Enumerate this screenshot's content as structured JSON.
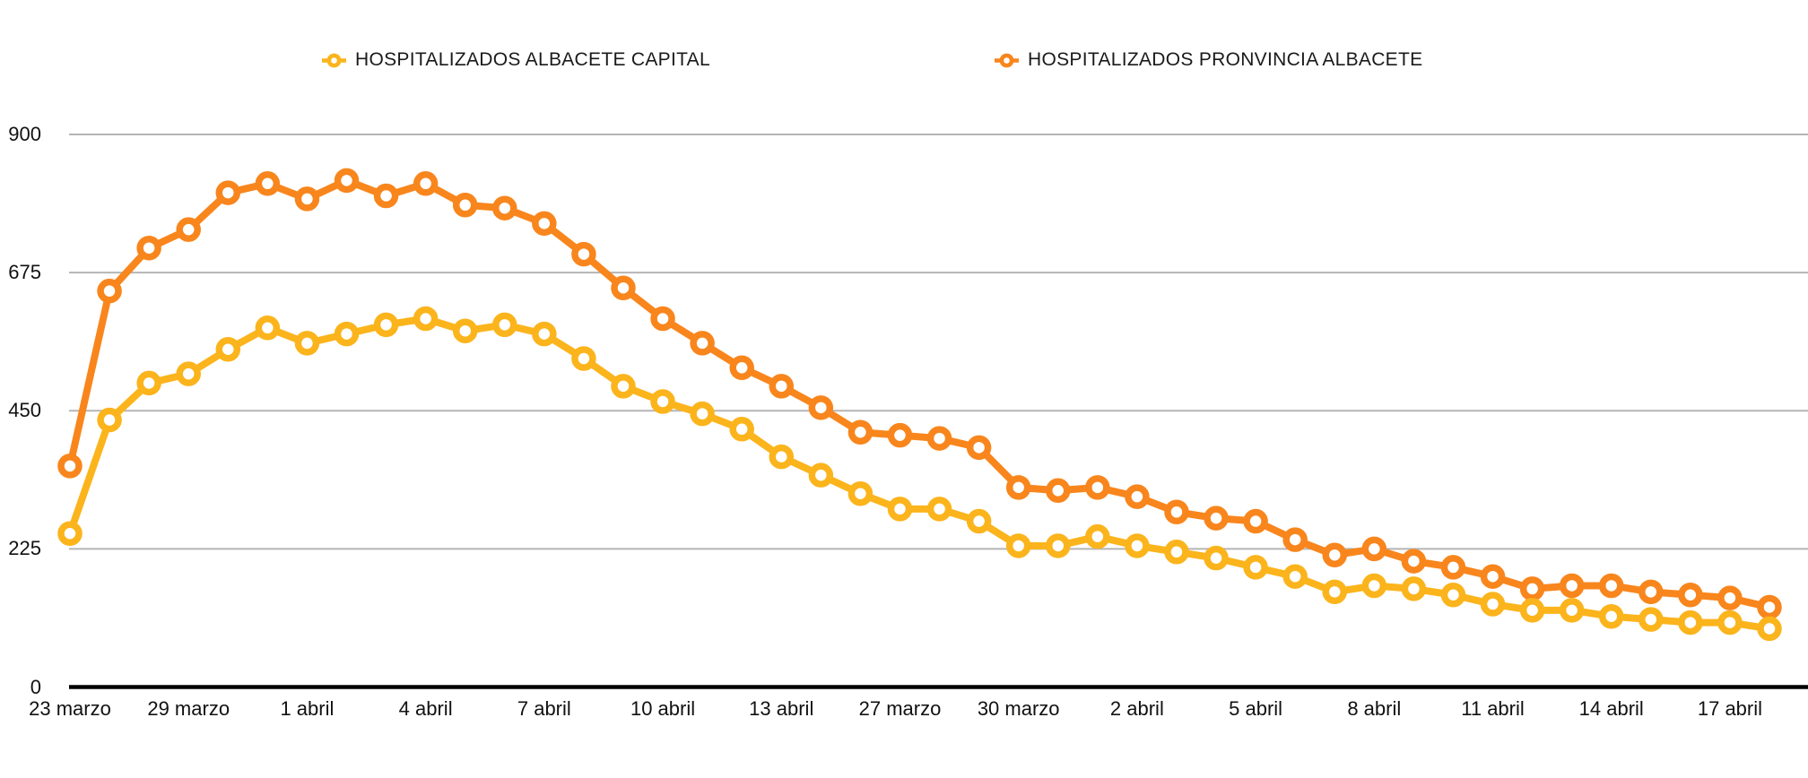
{
  "page": {
    "background": "#ffffff"
  },
  "legend": {
    "items": [
      {
        "label": "HOSPITALIZADOS ALBACETE CAPITAL",
        "color": "#FBB41C"
      },
      {
        "label": "HOSPITALIZADOS PRONVINCIA ALBACETE",
        "color": "#F8861D"
      }
    ]
  },
  "chart_data": {
    "type": "line",
    "title": "",
    "xlabel": "",
    "ylabel": "",
    "ylim": [
      0,
      900
    ],
    "yticks": [
      0,
      225,
      450,
      675,
      900
    ],
    "grid": true,
    "legend_position": "top",
    "marker_style": "open-circle",
    "n_points": 44,
    "x_tick_every": 3,
    "x_tick_labels": [
      "23 marzo",
      "29 marzo",
      "1 abril",
      "4 abril",
      "7 abril",
      "10 abril",
      "13 abril",
      "27 marzo",
      "30 marzo",
      "2 abril",
      "5 abril",
      "8 abril",
      "11 abril",
      "14 abril",
      "17 abril"
    ],
    "series": [
      {
        "name": "HOSPITALIZADOS ALBACETE CAPITAL",
        "color": "#FBB41C",
        "values": [
          250,
          435,
          495,
          510,
          550,
          585,
          560,
          575,
          590,
          600,
          580,
          590,
          575,
          535,
          490,
          465,
          445,
          420,
          375,
          345,
          315,
          290,
          290,
          270,
          230,
          230,
          245,
          230,
          220,
          210,
          195,
          180,
          155,
          165,
          160,
          150,
          135,
          125,
          125,
          115,
          110,
          105,
          105,
          95
        ]
      },
      {
        "name": "HOSPITALIZADOS PRONVINCIA ALBACETE",
        "color": "#F8861D",
        "values": [
          360,
          645,
          715,
          745,
          805,
          820,
          795,
          825,
          800,
          820,
          785,
          780,
          755,
          705,
          650,
          600,
          560,
          520,
          490,
          455,
          415,
          410,
          405,
          390,
          325,
          320,
          325,
          310,
          285,
          275,
          270,
          240,
          215,
          225,
          205,
          195,
          180,
          160,
          165,
          165,
          155,
          150,
          145,
          130
        ]
      }
    ]
  }
}
